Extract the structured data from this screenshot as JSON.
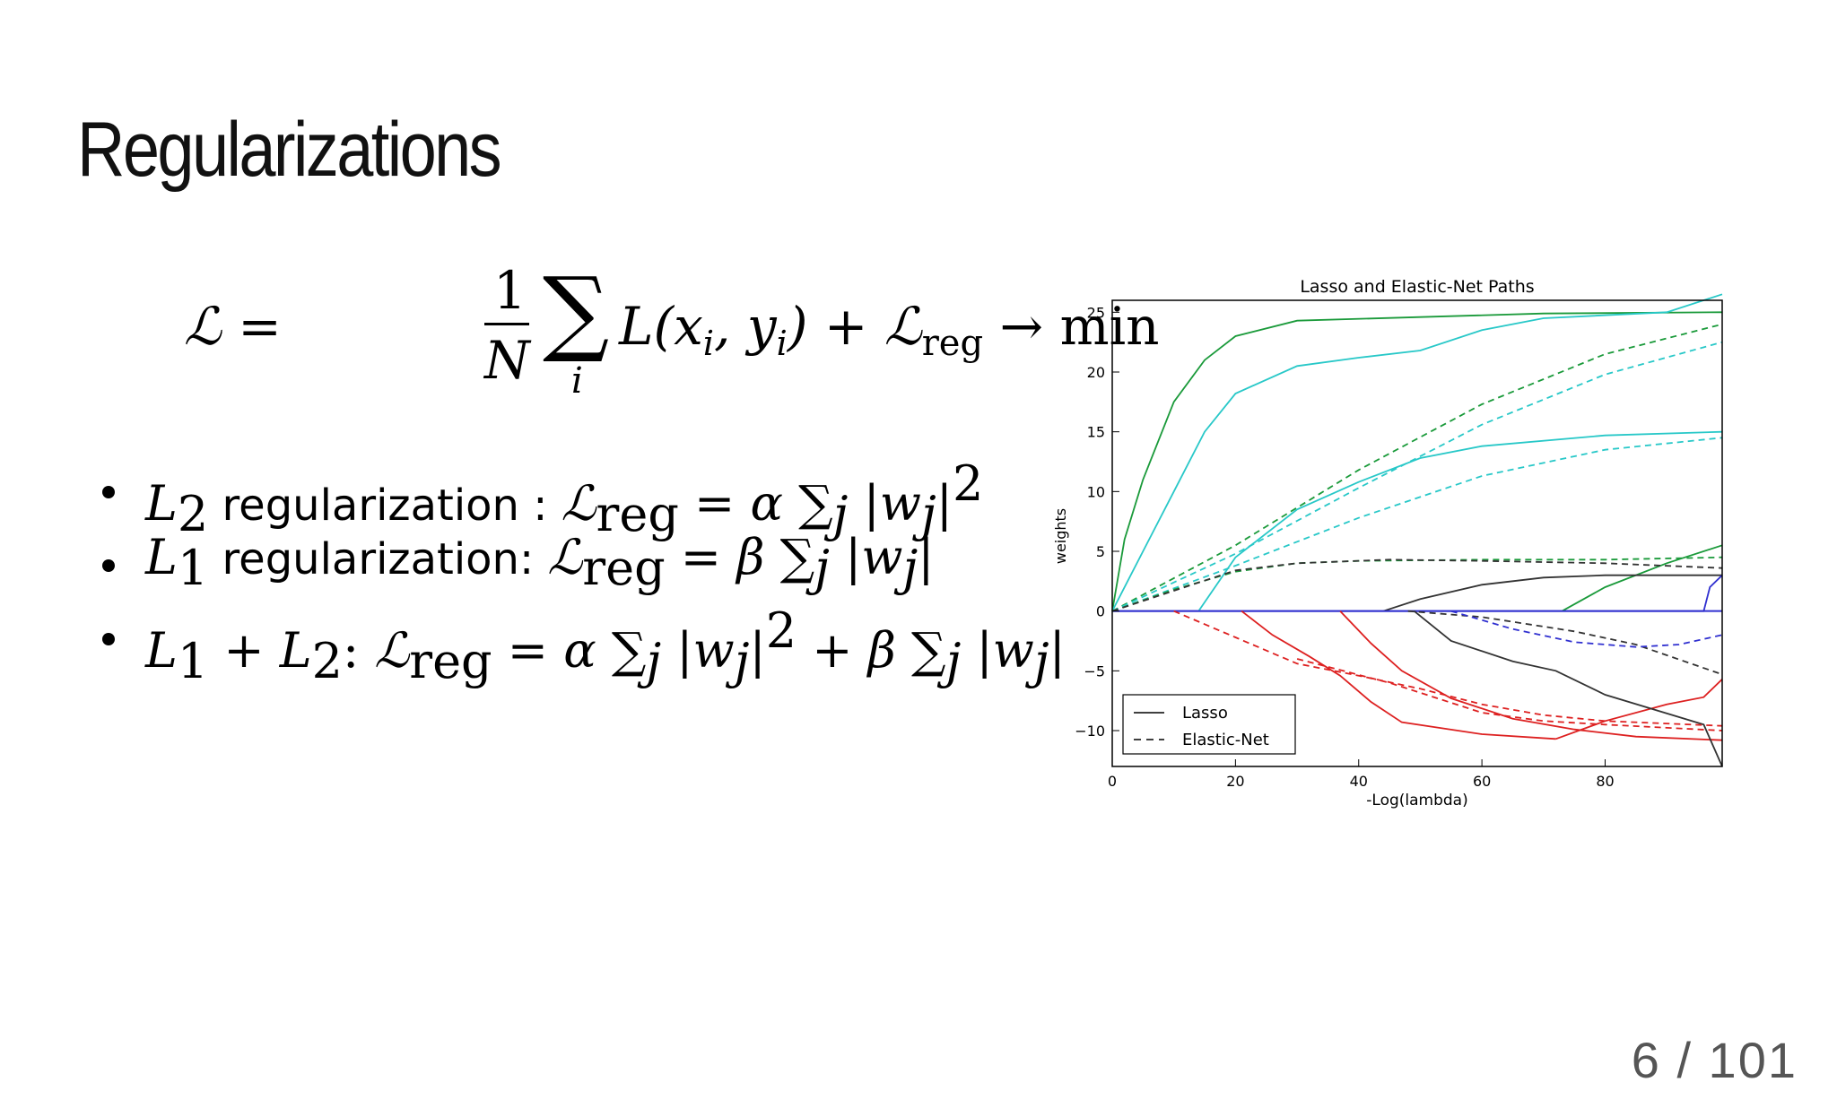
{
  "slide": {
    "title": "Regularizations",
    "formula": {
      "lhs": "ℒ =",
      "frac_num": "1",
      "frac_den": "N",
      "sum": "∑",
      "sum_index": "i",
      "loss": "L(x",
      "loss_sub_i": "i",
      "comma_y": ", y",
      "loss_sub_i2": "i",
      "close": ") + ℒ",
      "reg_sub": "reg",
      "arrow": " → min"
    },
    "bullets": [
      {
        "pre": "L",
        "pre_sub": "2",
        "text": " regularization : ",
        "cal": "ℒ",
        "reg": "reg",
        "rhs": " = α ∑",
        "j": "j",
        "abs": " |w",
        "wj": "j",
        "abs_close": "|",
        "sup": "2"
      },
      {
        "pre": "L",
        "pre_sub": "1",
        "text": " regularization: ",
        "cal": "ℒ",
        "reg": "reg",
        "rhs": " = β ∑",
        "j": "j",
        "abs": " |w",
        "wj": "j",
        "abs_close": "|"
      },
      {
        "pre": "L",
        "pre_sub": "1",
        "plus": " + L",
        "pre_sub2": "2",
        "text": ": ",
        "cal": "ℒ",
        "reg": "reg",
        "rhs": " = α ∑",
        "j": "j",
        "abs": " |w",
        "wj": "j",
        "abs_close": "|",
        "sup": "2",
        "rhs2": " + β ∑",
        "j2": "j",
        "abs2": " |w",
        "wj2": "j",
        "abs_close2": "|"
      }
    ],
    "page_number": "6 / 101"
  },
  "chart_data": {
    "type": "line",
    "title": "Lasso and Elastic-Net Paths",
    "xlabel": "-Log(lambda)",
    "ylabel": "weights",
    "xlim": [
      0,
      99
    ],
    "ylim": [
      -13,
      26
    ],
    "xticks": [
      0,
      20,
      40,
      60,
      80
    ],
    "yticks": [
      25,
      20,
      15,
      10,
      5,
      0,
      -5,
      -10
    ],
    "ytick_labels": [
      "25",
      "20",
      "15",
      "10",
      "5",
      "0",
      "−5",
      "−10"
    ],
    "legend": {
      "position": "bottom-left",
      "entries": [
        {
          "label": "Lasso",
          "style": "solid"
        },
        {
          "label": "Elastic-Net",
          "style": "dashed"
        }
      ]
    },
    "series": [
      {
        "style": "solid",
        "color": "#1a9a3a",
        "points": [
          [
            0,
            0
          ],
          [
            2,
            6
          ],
          [
            5,
            11
          ],
          [
            10,
            17.5
          ],
          [
            15,
            21
          ],
          [
            20,
            23
          ],
          [
            30,
            24.3
          ],
          [
            50,
            24.6
          ],
          [
            70,
            24.9
          ],
          [
            99,
            25
          ]
        ]
      },
      {
        "style": "solid",
        "color": "#28c8c8",
        "points": [
          [
            0,
            0
          ],
          [
            5,
            5
          ],
          [
            10,
            10
          ],
          [
            15,
            15
          ],
          [
            20,
            18.2
          ],
          [
            30,
            20.5
          ],
          [
            40,
            21.2
          ],
          [
            50,
            21.8
          ],
          [
            60,
            23.5
          ],
          [
            70,
            24.5
          ],
          [
            90,
            25
          ],
          [
            99,
            26.5
          ]
        ]
      },
      {
        "style": "solid",
        "color": "#28c8c8",
        "points": [
          [
            14,
            0
          ],
          [
            20,
            4.5
          ],
          [
            30,
            8.5
          ],
          [
            40,
            10.8
          ],
          [
            50,
            12.8
          ],
          [
            60,
            13.8
          ],
          [
            80,
            14.7
          ],
          [
            99,
            15
          ]
        ]
      },
      {
        "style": "solid",
        "color": "#1a9a3a",
        "points": [
          [
            73,
            0
          ],
          [
            80,
            2
          ],
          [
            90,
            4
          ],
          [
            99,
            5.5
          ]
        ]
      },
      {
        "style": "solid",
        "color": "#333333",
        "points": [
          [
            44,
            0
          ],
          [
            50,
            1
          ],
          [
            60,
            2.2
          ],
          [
            70,
            2.8
          ],
          [
            80,
            3
          ],
          [
            99,
            3
          ]
        ]
      },
      {
        "style": "solid",
        "color": "#3030d0",
        "points": [
          [
            0,
            0
          ],
          [
            96,
            0
          ],
          [
            97,
            2
          ],
          [
            99,
            3
          ]
        ]
      },
      {
        "style": "solid",
        "color": "#dd2020",
        "points": [
          [
            21,
            0
          ],
          [
            26,
            -2
          ],
          [
            32,
            -3.8
          ],
          [
            37,
            -5.4
          ],
          [
            42,
            -7.6
          ],
          [
            47,
            -9.3
          ],
          [
            60,
            -10.3
          ],
          [
            72,
            -10.7
          ]
        ]
      },
      {
        "style": "solid",
        "color": "#dd2020",
        "points": [
          [
            37,
            0
          ],
          [
            42,
            -2.7
          ],
          [
            47,
            -5
          ],
          [
            55,
            -7.3
          ],
          [
            65,
            -9
          ],
          [
            75,
            -9.9
          ],
          [
            85,
            -10.5
          ],
          [
            99,
            -10.8
          ]
        ]
      },
      {
        "style": "solid",
        "color": "#dd2020",
        "points": [
          [
            72,
            -10.7
          ],
          [
            80,
            -9.2
          ],
          [
            90,
            -7.8
          ],
          [
            96,
            -7.2
          ],
          [
            99,
            -5.7
          ]
        ]
      },
      {
        "style": "solid",
        "color": "#333333",
        "points": [
          [
            49,
            0
          ],
          [
            55,
            -2.5
          ],
          [
            65,
            -4.2
          ],
          [
            72,
            -5
          ],
          [
            80,
            -7
          ],
          [
            96,
            -9.5
          ],
          [
            99,
            -13
          ]
        ]
      },
      {
        "style": "dashed",
        "color": "#1a9a3a",
        "points": [
          [
            0,
            0
          ],
          [
            20,
            5.5
          ],
          [
            40,
            11.8
          ],
          [
            60,
            17.3
          ],
          [
            80,
            21.5
          ],
          [
            99,
            24
          ]
        ]
      },
      {
        "style": "dashed",
        "color": "#28c8c8",
        "points": [
          [
            0,
            0
          ],
          [
            20,
            4.8
          ],
          [
            40,
            10.3
          ],
          [
            60,
            15.6
          ],
          [
            80,
            19.8
          ],
          [
            99,
            22.5
          ]
        ]
      },
      {
        "style": "dashed",
        "color": "#28c8c8",
        "points": [
          [
            0,
            0
          ],
          [
            20,
            3.8
          ],
          [
            40,
            7.8
          ],
          [
            60,
            11.3
          ],
          [
            80,
            13.5
          ],
          [
            99,
            14.5
          ]
        ]
      },
      {
        "style": "dashed",
        "color": "#1a9a3a",
        "points": [
          [
            0,
            0
          ],
          [
            10,
            1.8
          ],
          [
            20,
            3.3
          ],
          [
            30,
            4
          ],
          [
            40,
            4.2
          ],
          [
            60,
            4.3
          ],
          [
            80,
            4.3
          ],
          [
            99,
            4.5
          ]
        ]
      },
      {
        "style": "dashed",
        "color": "#333333",
        "points": [
          [
            0,
            0
          ],
          [
            10,
            1.7
          ],
          [
            20,
            3.4
          ],
          [
            30,
            4
          ],
          [
            45,
            4.3
          ],
          [
            60,
            4.2
          ],
          [
            80,
            4
          ],
          [
            99,
            3.6
          ]
        ]
      },
      {
        "style": "dashed",
        "color": "#333333",
        "points": [
          [
            48,
            0
          ],
          [
            60,
            -0.5
          ],
          [
            75,
            -1.7
          ],
          [
            85,
            -2.8
          ],
          [
            99,
            -5.3
          ]
        ]
      },
      {
        "style": "dashed",
        "color": "#3030d0",
        "points": [
          [
            55,
            0
          ],
          [
            65,
            -1.5
          ],
          [
            75,
            -2.6
          ],
          [
            85,
            -3
          ],
          [
            92,
            -2.8
          ],
          [
            99,
            -2
          ]
        ]
      },
      {
        "style": "dashed",
        "color": "#dd2020",
        "points": [
          [
            10,
            0
          ],
          [
            20,
            -2.2
          ],
          [
            30,
            -4.4
          ],
          [
            40,
            -5.4
          ],
          [
            50,
            -6.5
          ],
          [
            60,
            -7.8
          ],
          [
            70,
            -8.7
          ],
          [
            80,
            -9.2
          ],
          [
            99,
            -9.6
          ]
        ]
      },
      {
        "style": "dashed",
        "color": "#dd2020",
        "points": [
          [
            30,
            -4
          ],
          [
            45,
            -6
          ],
          [
            60,
            -8.5
          ],
          [
            70,
            -9.2
          ],
          [
            80,
            -9.5
          ],
          [
            99,
            -10
          ]
        ]
      }
    ]
  }
}
